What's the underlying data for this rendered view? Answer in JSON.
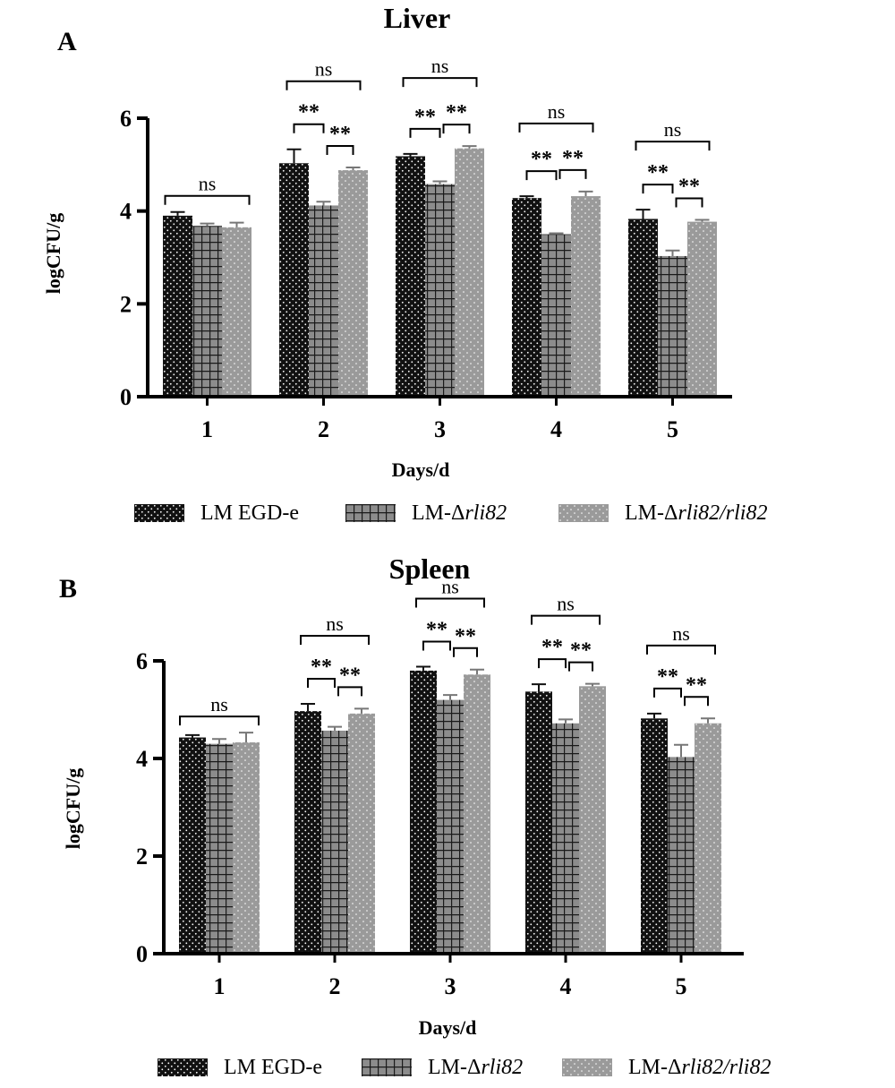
{
  "legend": [
    {
      "prefix": "LM EGD-e",
      "italic": "",
      "color": "#111111",
      "pattern": "dots"
    },
    {
      "prefix": "LM-Δ",
      "italic": "rli82",
      "color": "#8c8c8c",
      "pattern": "grid"
    },
    {
      "prefix": "LM-Δ",
      "italic": "rli82/rli82",
      "color": "#9a9a9a",
      "pattern": "finedots"
    }
  ],
  "chart_data": [
    {
      "type": "bar",
      "panel_letter": "A",
      "title": "Liver",
      "xlabel": "Days/d",
      "ylabel": "logCFU/g",
      "ylim": [
        0,
        6
      ],
      "yticks": [
        "0",
        "2",
        "4",
        "6"
      ],
      "categories": [
        "1",
        "2",
        "3",
        "4",
        "5"
      ],
      "series": [
        {
          "name": "LM EGD-e",
          "values": [
            3.9,
            5.03,
            5.18,
            4.28,
            3.83
          ],
          "errors": [
            0.08,
            0.3,
            0.05,
            0.04,
            0.2
          ]
        },
        {
          "name": "LM-Δrli82",
          "values": [
            3.68,
            4.12,
            4.58,
            3.5,
            3.03
          ],
          "errors": [
            0.05,
            0.08,
            0.06,
            0.02,
            0.12
          ]
        },
        {
          "name": "LM-Δrli82/rli82",
          "values": [
            3.65,
            4.88,
            5.35,
            4.32,
            3.77
          ],
          "errors": [
            0.1,
            0.06,
            0.05,
            0.1,
            0.04
          ]
        }
      ],
      "annotations": [
        {
          "day": "1",
          "ns": "ns"
        },
        {
          "day": "2",
          "ns": "ns",
          "left": "**",
          "right": "**"
        },
        {
          "day": "3",
          "ns": "ns",
          "left": "**",
          "right": "**"
        },
        {
          "day": "4",
          "ns": "ns",
          "left": "**",
          "right": "**"
        },
        {
          "day": "5",
          "ns": "ns",
          "left": "**",
          "right": "**"
        }
      ]
    },
    {
      "type": "bar",
      "panel_letter": "B",
      "title": "Spleen",
      "xlabel": "Days/d",
      "ylabel": "logCFU/g",
      "ylim": [
        0,
        6
      ],
      "yticks": [
        "0",
        "2",
        "4",
        "6"
      ],
      "categories": [
        "1",
        "2",
        "3",
        "4",
        "5"
      ],
      "series": [
        {
          "name": "LM EGD-e",
          "values": [
            4.43,
            4.97,
            5.8,
            5.37,
            4.82
          ],
          "errors": [
            0.05,
            0.15,
            0.08,
            0.15,
            0.1
          ]
        },
        {
          "name": "LM-Δrli82",
          "values": [
            4.3,
            4.57,
            5.2,
            4.72,
            4.03
          ],
          "errors": [
            0.1,
            0.08,
            0.1,
            0.08,
            0.25
          ]
        },
        {
          "name": "LM-Δrli82/rli82",
          "values": [
            4.33,
            4.92,
            5.72,
            5.48,
            4.72
          ],
          "errors": [
            0.2,
            0.1,
            0.1,
            0.05,
            0.1
          ]
        }
      ],
      "annotations": [
        {
          "day": "1",
          "ns": "ns"
        },
        {
          "day": "2",
          "ns": "ns",
          "left": "**",
          "right": "**"
        },
        {
          "day": "3",
          "ns": "ns",
          "left": "**",
          "right": "**"
        },
        {
          "day": "4",
          "ns": "ns",
          "left": "**",
          "right": "**"
        },
        {
          "day": "5",
          "ns": "ns",
          "left": "**",
          "right": "**"
        }
      ]
    }
  ]
}
